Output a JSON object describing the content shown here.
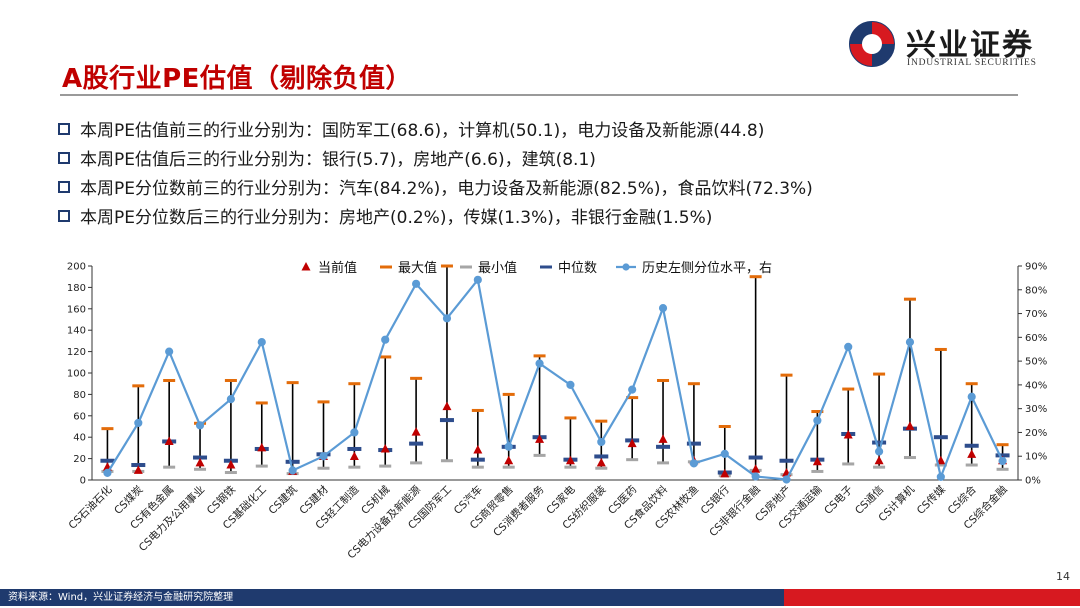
{
  "header": {
    "title": "A股行业PE估值（剔除负值）",
    "logo_cn": "兴业证券",
    "logo_en": "INDUSTRIAL SECURITIES",
    "logo_colors": {
      "red": "#d71920",
      "blue": "#1f3a6e"
    }
  },
  "bullets": [
    "本周PE估值前三的行业分别为：国防军工(68.6)，计算机(50.1)，电力设备及新能源(44.8)",
    "本周PE估值后三的行业分别为：银行(5.7)，房地产(6.6)，建筑(8.1)",
    "本周PE分位数前三的行业分别为：汽车(84.2%)，电力设备及新能源(82.5%)，食品饮料(72.3%)",
    "本周PE分位数后三的行业分别为：房地产(0.2%)，传媒(1.3%)，非银行金融(1.5%)"
  ],
  "footer": {
    "source": "资料来源：Wind，兴业证券经济与金融研究院整理",
    "page": "14"
  },
  "chart_data": {
    "type": "line",
    "legend_position": "top",
    "legend": [
      "当前值",
      "最大值",
      "最小值",
      "中位数",
      "历史左侧分位水平，右"
    ],
    "categories": [
      "CS石油石化",
      "CS煤炭",
      "CS有色金属",
      "CS电力及公用事业",
      "CS钢铁",
      "CS基础化工",
      "CS建筑",
      "CS建材",
      "CS轻工制造",
      "CS机械",
      "CS电力设备及新能源",
      "CS国防军工",
      "CS汽车",
      "CS商贸零售",
      "CS消费者服务",
      "CS家电",
      "CS纺织服装",
      "CS医药",
      "CS食品饮料",
      "CS农林牧渔",
      "CS银行",
      "CS非银行金融",
      "CS房地产",
      "CS交通运输",
      "CS电子",
      "CS通信",
      "CS计算机",
      "CS传媒",
      "CS综合",
      "CS综合金融"
    ],
    "series": [
      {
        "name": "当前值",
        "marker": "triangle",
        "color": "#c00000",
        "axis": "left",
        "values": [
          12,
          9,
          36,
          16,
          14,
          30,
          8.1,
          22,
          22,
          29,
          44.8,
          68.6,
          28,
          18,
          38,
          18,
          16,
          34,
          38,
          18,
          5.7,
          10,
          6.6,
          17,
          42,
          18,
          50.1,
          18,
          24,
          18
        ]
      },
      {
        "name": "最大值",
        "marker": "dash",
        "color": "#e36c0a",
        "axis": "left",
        "values": [
          48,
          88,
          93,
          53,
          93,
          72,
          91,
          73,
          90,
          115,
          95,
          200,
          65,
          80,
          116,
          58,
          55,
          77,
          93,
          90,
          50,
          190,
          98,
          64,
          85,
          99,
          169,
          122,
          90,
          33
        ]
      },
      {
        "name": "最小值",
        "marker": "dash",
        "color": "#a6a6a6",
        "axis": "left",
        "values": [
          8,
          8,
          12,
          10,
          7,
          13,
          6,
          11,
          12,
          13,
          16,
          18,
          12,
          12,
          23,
          12,
          11,
          19,
          16,
          17,
          4,
          9,
          5,
          8,
          15,
          12,
          21,
          14,
          14,
          10
        ]
      },
      {
        "name": "中位数",
        "marker": "dash",
        "color": "#2e4d8c",
        "axis": "left",
        "values": [
          18,
          14,
          36,
          21,
          18,
          29,
          17,
          24,
          29,
          28,
          34,
          56,
          19,
          31,
          40,
          19,
          22,
          37,
          31,
          34,
          7,
          21,
          18,
          19,
          43,
          35,
          48,
          40,
          32,
          23
        ]
      },
      {
        "name": "历史左侧分位水平，右",
        "marker": "circle-line",
        "color": "#5b9bd5",
        "axis": "right",
        "values": [
          3,
          24,
          54,
          23,
          34,
          58,
          4,
          10,
          20,
          59,
          82.5,
          68,
          84.2,
          14,
          49,
          40,
          16,
          38,
          72.3,
          7,
          11,
          1.5,
          0.2,
          25,
          56,
          12,
          58,
          1.3,
          35,
          8
        ]
      }
    ],
    "left_axis": {
      "min": 0,
      "max": 200,
      "ticks": [
        "0",
        "20",
        "40",
        "60",
        "80",
        "100",
        "120",
        "140",
        "160",
        "180",
        "200"
      ]
    },
    "right_axis": {
      "min": 0,
      "max": 90,
      "ticks": [
        "0%",
        "10%",
        "20%",
        "30%",
        "40%",
        "50%",
        "60%",
        "70%",
        "80%",
        "90%"
      ]
    }
  }
}
